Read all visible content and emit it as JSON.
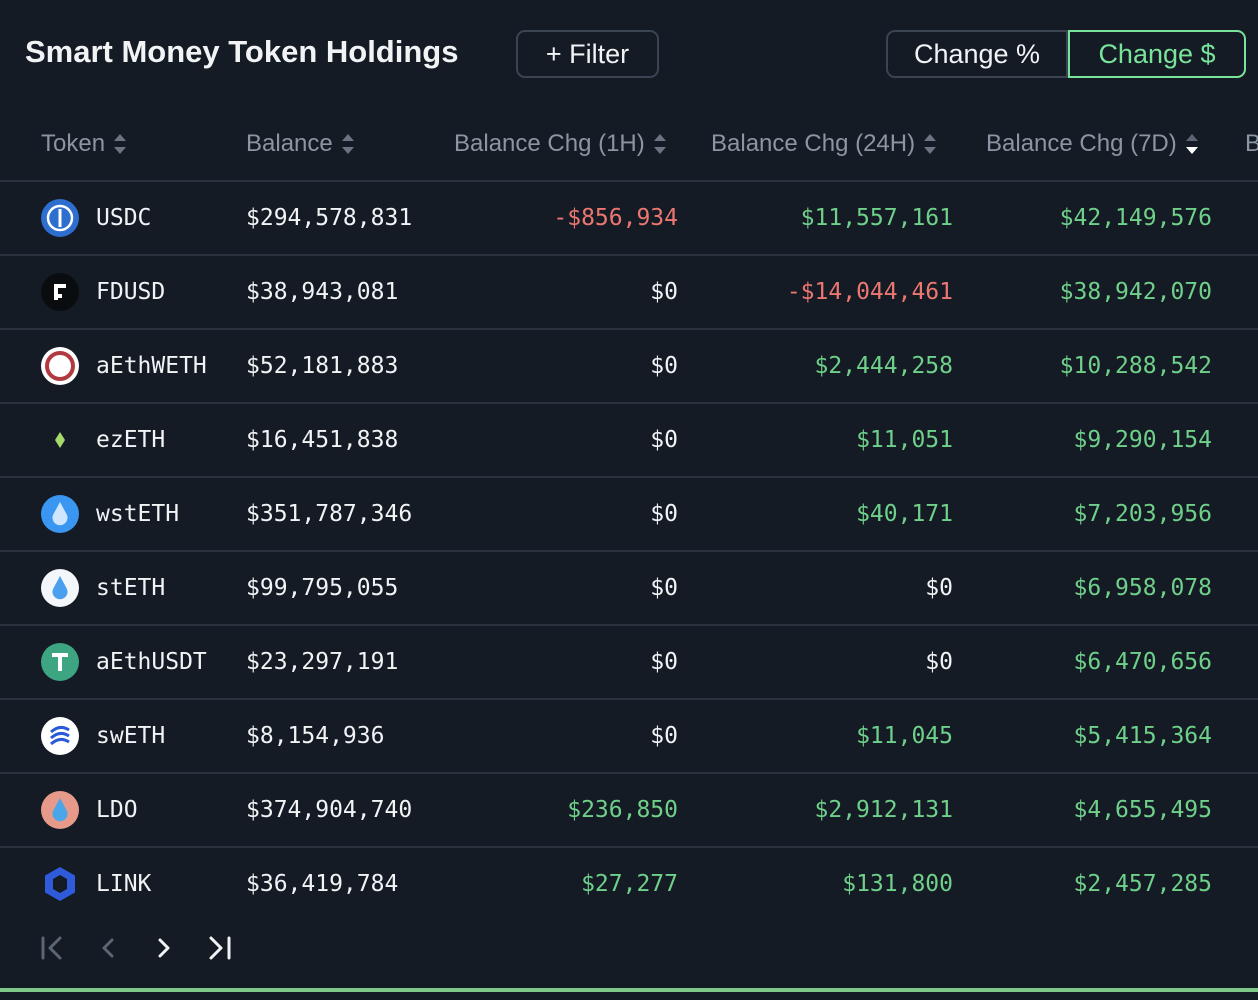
{
  "header": {
    "title": "Smart Money Token Holdings",
    "filter": "+ Filter",
    "toggle": [
      "Change %",
      "Change $"
    ]
  },
  "table": {
    "columns": [
      "Token",
      "Balance",
      "Balance Chg (1H)",
      "Balance Chg (24H)",
      "Balance Chg (7D)",
      "B"
    ],
    "rows": [
      [
        "USDC",
        "$294,578,831",
        "-$856,934",
        "$11,557,161",
        "$42,149,576"
      ],
      [
        "FDUSD",
        "$38,943,081",
        "$0",
        "-$14,044,461",
        "$38,942,070"
      ],
      [
        "aEthWETH",
        "$52,181,883",
        "$0",
        "$2,444,258",
        "$10,288,542"
      ],
      [
        "ezETH",
        "$16,451,838",
        "$0",
        "$11,051",
        "$9,290,154"
      ],
      [
        "wstETH",
        "$351,787,346",
        "$0",
        "$40,171",
        "$7,203,956"
      ],
      [
        "stETH",
        "$99,795,055",
        "$0",
        "$0",
        "$6,958,078"
      ],
      [
        "aEthUSDT",
        "$23,297,191",
        "$0",
        "$0",
        "$6,470,656"
      ],
      [
        "swETH",
        "$8,154,936",
        "$0",
        "$11,045",
        "$5,415,364"
      ],
      [
        "LDO",
        "$374,904,740",
        "$236,850",
        "$2,912,131",
        "$4,655,495"
      ],
      [
        "LINK",
        "$36,419,784",
        "$27,277",
        "$131,800",
        "$2,457,285"
      ]
    ]
  }
}
